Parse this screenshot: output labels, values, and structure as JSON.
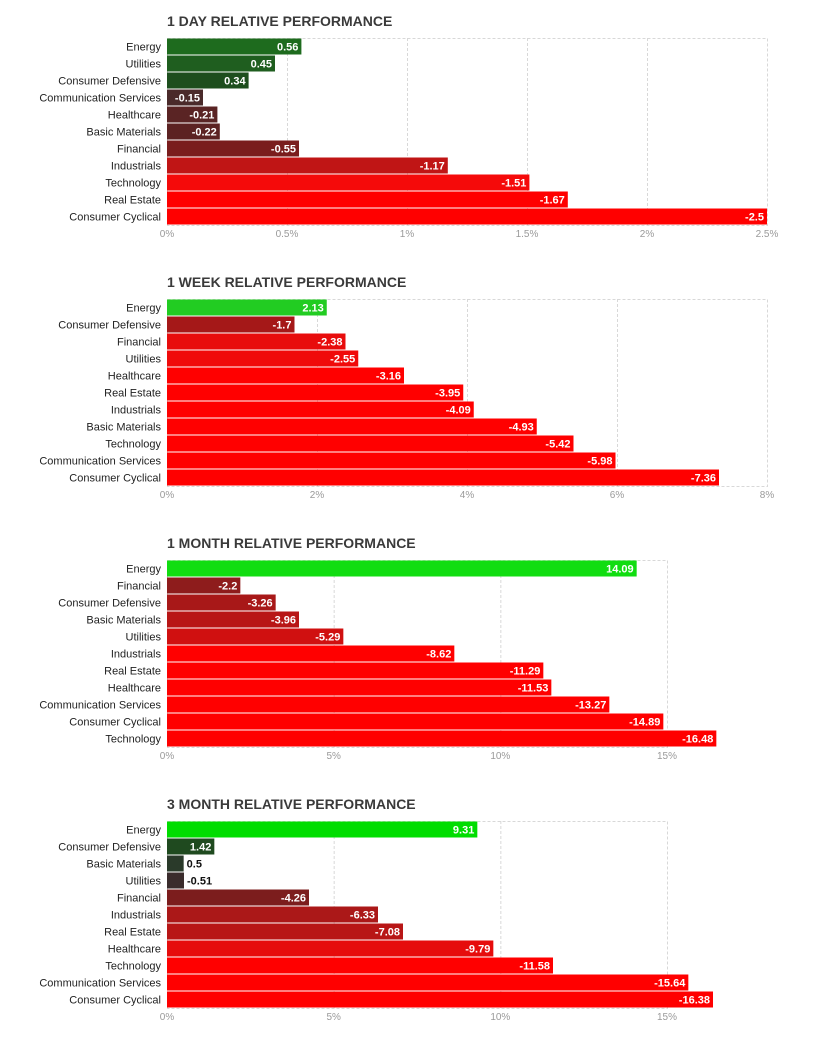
{
  "chart_data": [
    {
      "type": "bar",
      "orientation": "horizontal",
      "title": "1 DAY RELATIVE PERFORMANCE",
      "categories": [
        "Energy",
        "Utilities",
        "Consumer Defensive",
        "Communication Services",
        "Healthcare",
        "Basic Materials",
        "Financial",
        "Industrials",
        "Technology",
        "Real Estate",
        "Consumer Cyclical"
      ],
      "values": [
        0.56,
        0.45,
        0.34,
        -0.15,
        -0.21,
        -0.22,
        -0.55,
        -1.17,
        -1.51,
        -1.67,
        -2.5
      ],
      "value_labels": [
        "0.56",
        "0.45",
        "0.34",
        "-0.15",
        "-0.21",
        "-0.22",
        "-0.55",
        "-1.17",
        "-1.51",
        "-1.67",
        "-2.5"
      ],
      "colors": [
        "#1e6b1e",
        "#1f5e1f",
        "#1d4e1d",
        "#4a2a2a",
        "#5a2424",
        "#5c2222",
        "#7a1d1d",
        "#c01515",
        "#f50a0a",
        "#ff0000",
        "#ff0000"
      ],
      "xlim": [
        0,
        2.5
      ],
      "ticks": [
        0,
        0.5,
        1,
        1.5,
        2,
        2.5
      ],
      "tick_labels": [
        "0%",
        "0.5%",
        "1%",
        "1.5%",
        "2%",
        "2.5%"
      ],
      "grid": true
    },
    {
      "type": "bar",
      "orientation": "horizontal",
      "title": "1 WEEK RELATIVE PERFORMANCE",
      "categories": [
        "Energy",
        "Consumer Defensive",
        "Financial",
        "Utilities",
        "Healthcare",
        "Real Estate",
        "Industrials",
        "Basic Materials",
        "Technology",
        "Communication Services",
        "Consumer Cyclical"
      ],
      "values": [
        2.13,
        -1.7,
        -2.38,
        -2.55,
        -3.16,
        -3.95,
        -4.09,
        -4.93,
        -5.42,
        -5.98,
        -7.36
      ],
      "value_labels": [
        "2.13",
        "-1.7",
        "-2.38",
        "-2.55",
        "-3.16",
        "-3.95",
        "-4.09",
        "-4.93",
        "-5.42",
        "-5.98",
        "-7.36"
      ],
      "colors": [
        "#22cc22",
        "#a51818",
        "#e80c0c",
        "#f00a0a",
        "#ff0000",
        "#ff0000",
        "#ff0000",
        "#ff0000",
        "#ff0000",
        "#ff0000",
        "#ff0000"
      ],
      "xlim": [
        0,
        8
      ],
      "ticks": [
        0,
        2,
        4,
        6,
        8
      ],
      "tick_labels": [
        "0%",
        "2%",
        "4%",
        "6%",
        "8%"
      ],
      "grid": true
    },
    {
      "type": "bar",
      "orientation": "horizontal",
      "title": "1 MONTH RELATIVE PERFORMANCE",
      "categories": [
        "Energy",
        "Financial",
        "Consumer Defensive",
        "Basic Materials",
        "Utilities",
        "Industrials",
        "Real Estate",
        "Healthcare",
        "Communication Services",
        "Consumer Cyclical",
        "Technology"
      ],
      "values": [
        14.09,
        -2.2,
        -3.26,
        -3.96,
        -5.29,
        -8.62,
        -11.29,
        -11.53,
        -13.27,
        -14.89,
        -16.48
      ],
      "value_labels": [
        "14.09",
        "-2.2",
        "-3.26",
        "-3.96",
        "-5.29",
        "-8.62",
        "-11.29",
        "-11.53",
        "-13.27",
        "-14.89",
        "-16.48"
      ],
      "colors": [
        "#11dd11",
        "#8e1c1c",
        "#a81818",
        "#b81616",
        "#d01010",
        "#ff0000",
        "#ff0000",
        "#ff0000",
        "#ff0000",
        "#ff0000",
        "#ff0000"
      ],
      "xlim": [
        0,
        15
      ],
      "ticks": [
        0,
        5,
        10,
        15
      ],
      "tick_labels": [
        "0%",
        "5%",
        "10%",
        "15%"
      ],
      "grid": true
    },
    {
      "type": "bar",
      "orientation": "horizontal",
      "title": "3 MONTH RELATIVE PERFORMANCE",
      "categories": [
        "Energy",
        "Consumer Defensive",
        "Basic Materials",
        "Utilities",
        "Financial",
        "Industrials",
        "Real Estate",
        "Healthcare",
        "Technology",
        "Communication Services",
        "Consumer Cyclical"
      ],
      "values": [
        9.31,
        1.42,
        0.5,
        -0.51,
        -4.26,
        -6.33,
        -7.08,
        -9.79,
        -11.58,
        -15.64,
        -16.38
      ],
      "value_labels": [
        "9.31",
        "1.42",
        "0.5",
        "-0.51",
        "-4.26",
        "-6.33",
        "-7.08",
        "-9.79",
        "-11.58",
        "-15.64",
        "-16.38"
      ],
      "colors": [
        "#00dd00",
        "#1f4a1f",
        "#2a3a2a",
        "#3a2c2c",
        "#7c1d1d",
        "#ab1818",
        "#b81616",
        "#e60c0c",
        "#ff0000",
        "#ff0000",
        "#ff0000"
      ],
      "xlim": [
        0,
        15
      ],
      "ticks": [
        0,
        5,
        10,
        15
      ],
      "tick_labels": [
        "0%",
        "5%",
        "10%",
        "15%"
      ],
      "grid": true
    }
  ]
}
